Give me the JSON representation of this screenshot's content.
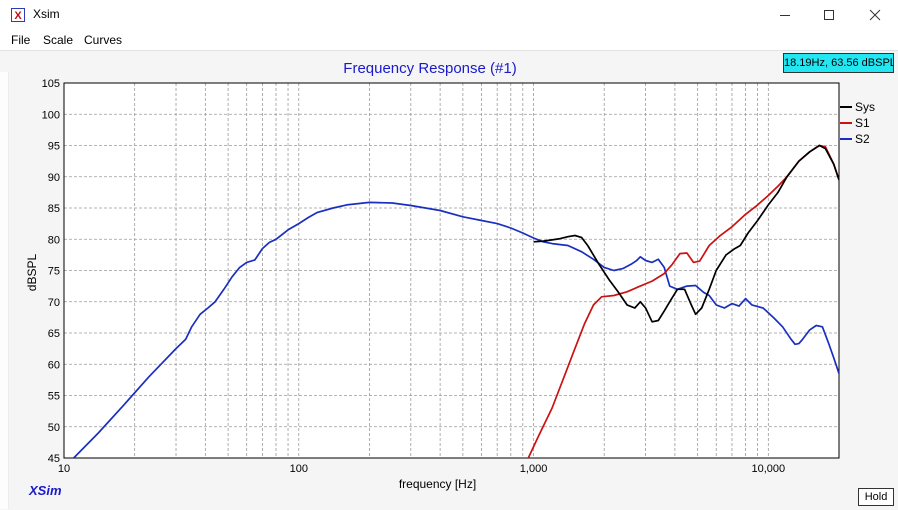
{
  "window": {
    "title": "Xsim"
  },
  "menu": [
    "File",
    "Scale",
    "Curves"
  ],
  "readout": "18.19Hz, 63.56 dBSPL",
  "hold_label": "Hold",
  "brand": "XSim",
  "chart_data": {
    "type": "line",
    "title": "Frequency Response (#1)",
    "xlabel": "frequency [Hz]",
    "ylabel": "dBSPL",
    "x_scale": "log",
    "xlim": [
      10,
      20000
    ],
    "ylim": [
      45,
      105
    ],
    "grid": true,
    "legend_position": "right",
    "x_tick_labels": [
      {
        "value": 10,
        "label": "10"
      },
      {
        "value": 100,
        "label": "100"
      },
      {
        "value": 1000,
        "label": "1,000"
      },
      {
        "value": 10000,
        "label": "10,000"
      }
    ],
    "y_ticks": [
      45,
      50,
      55,
      60,
      65,
      70,
      75,
      80,
      85,
      90,
      95,
      100,
      105
    ],
    "series": [
      {
        "name": "Sys",
        "color": "#000000",
        "points": [
          [
            1000,
            79.6
          ],
          [
            1100,
            79.7
          ],
          [
            1200,
            79.9
          ],
          [
            1300,
            80.1
          ],
          [
            1400,
            80.4
          ],
          [
            1500,
            80.6
          ],
          [
            1600,
            80.3
          ],
          [
            1700,
            79
          ],
          [
            1900,
            76
          ],
          [
            2100,
            73.5
          ],
          [
            2300,
            71.5
          ],
          [
            2500,
            69.5
          ],
          [
            2700,
            69
          ],
          [
            2850,
            70
          ],
          [
            3000,
            69
          ],
          [
            3200,
            66.8
          ],
          [
            3400,
            67
          ],
          [
            3600,
            68.5
          ],
          [
            3800,
            70
          ],
          [
            4100,
            72
          ],
          [
            4400,
            72
          ],
          [
            4700,
            69.5
          ],
          [
            4900,
            68
          ],
          [
            5200,
            69
          ],
          [
            5600,
            72
          ],
          [
            6000,
            75
          ],
          [
            6600,
            77.5
          ],
          [
            7200,
            78.5
          ],
          [
            7600,
            79
          ],
          [
            8200,
            81
          ],
          [
            9000,
            83
          ],
          [
            10000,
            85.5
          ],
          [
            11000,
            87.5
          ],
          [
            12000,
            90
          ],
          [
            13500,
            92.5
          ],
          [
            15000,
            94
          ],
          [
            16500,
            95
          ],
          [
            17500,
            94.5
          ],
          [
            19000,
            92
          ],
          [
            20000,
            89.5
          ]
        ]
      },
      {
        "name": "S1",
        "color": "#cc1111",
        "points": [
          [
            950,
            45
          ],
          [
            1050,
            48.5
          ],
          [
            1200,
            53
          ],
          [
            1350,
            58
          ],
          [
            1500,
            62.5
          ],
          [
            1650,
            66.5
          ],
          [
            1800,
            69.5
          ],
          [
            1950,
            70.8
          ],
          [
            2200,
            71
          ],
          [
            2500,
            71.6
          ],
          [
            2800,
            72.4
          ],
          [
            3200,
            73.3
          ],
          [
            3600,
            74.5
          ],
          [
            3900,
            76
          ],
          [
            4200,
            77.7
          ],
          [
            4500,
            77.8
          ],
          [
            4800,
            76.3
          ],
          [
            5100,
            76.5
          ],
          [
            5600,
            79
          ],
          [
            6200,
            80.5
          ],
          [
            7000,
            82
          ],
          [
            8000,
            84
          ],
          [
            9000,
            85.5
          ],
          [
            10000,
            87
          ],
          [
            11000,
            88.5
          ],
          [
            12000,
            90
          ],
          [
            13500,
            92.5
          ],
          [
            15000,
            94
          ],
          [
            16500,
            95
          ],
          [
            17500,
            94.8
          ],
          [
            19000,
            92
          ],
          [
            20000,
            89.5
          ]
        ]
      },
      {
        "name": "S2",
        "color": "#1a2fbf",
        "points": [
          [
            11,
            45
          ],
          [
            14,
            49
          ],
          [
            18,
            53.5
          ],
          [
            23,
            58
          ],
          [
            30,
            62.5
          ],
          [
            33,
            64
          ],
          [
            35,
            66
          ],
          [
            38,
            68
          ],
          [
            41,
            69
          ],
          [
            44,
            70
          ],
          [
            48,
            72
          ],
          [
            52,
            74
          ],
          [
            56,
            75.5
          ],
          [
            60,
            76.3
          ],
          [
            65,
            76.7
          ],
          [
            70,
            78.5
          ],
          [
            75,
            79.5
          ],
          [
            80,
            80
          ],
          [
            90,
            81.5
          ],
          [
            100,
            82.5
          ],
          [
            110,
            83.5
          ],
          [
            120,
            84.3
          ],
          [
            140,
            85
          ],
          [
            160,
            85.5
          ],
          [
            200,
            85.9
          ],
          [
            250,
            85.8
          ],
          [
            300,
            85.4
          ],
          [
            400,
            84.6
          ],
          [
            500,
            83.6
          ],
          [
            600,
            83
          ],
          [
            700,
            82.5
          ],
          [
            800,
            81.8
          ],
          [
            900,
            81
          ],
          [
            1000,
            80.2
          ],
          [
            1100,
            79.6
          ],
          [
            1200,
            79.3
          ],
          [
            1400,
            79
          ],
          [
            1600,
            78
          ],
          [
            1800,
            76.8
          ],
          [
            2000,
            75.5
          ],
          [
            2200,
            75
          ],
          [
            2400,
            75.3
          ],
          [
            2600,
            76
          ],
          [
            2750,
            76.6
          ],
          [
            2850,
            77.2
          ],
          [
            3000,
            76.6
          ],
          [
            3200,
            76.3
          ],
          [
            3400,
            76.8
          ],
          [
            3600,
            75.5
          ],
          [
            3800,
            72.5
          ],
          [
            4100,
            72
          ],
          [
            4500,
            72.5
          ],
          [
            4900,
            72.6
          ],
          [
            5300,
            71.5
          ],
          [
            5600,
            71
          ],
          [
            6000,
            69.5
          ],
          [
            6500,
            69
          ],
          [
            7000,
            69.7
          ],
          [
            7500,
            69.3
          ],
          [
            8000,
            70.5
          ],
          [
            8500,
            69.5
          ],
          [
            9500,
            69
          ],
          [
            10500,
            67.5
          ],
          [
            11500,
            66
          ],
          [
            12500,
            64
          ],
          [
            13000,
            63.2
          ],
          [
            13500,
            63.3
          ],
          [
            14000,
            64
          ],
          [
            15000,
            65.5
          ],
          [
            16000,
            66.2
          ],
          [
            17000,
            66
          ],
          [
            18000,
            63.5
          ],
          [
            19000,
            61
          ],
          [
            20000,
            58.5
          ]
        ]
      }
    ]
  }
}
